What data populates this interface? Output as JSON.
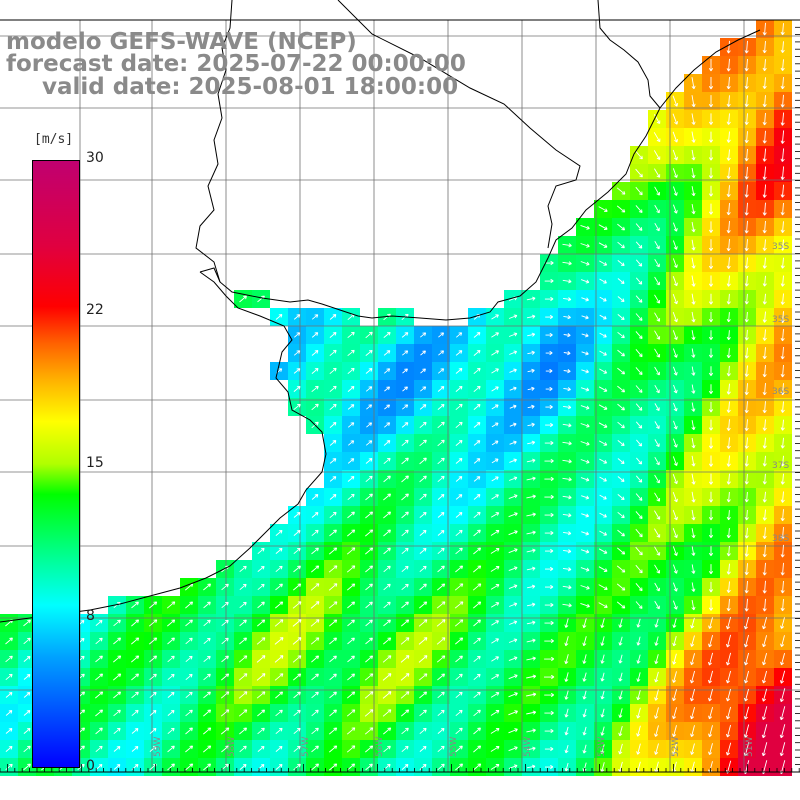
{
  "header": {
    "line1": "modelo GEFS-WAVE (NCEP)",
    "line2": "forecast date: 2025-07-22 00:00:00",
    "line3": "valid date: 2025-08-01 18:00:00"
  },
  "colorbar": {
    "unit": "[m/s]",
    "ticks": [
      "30",
      "22",
      "15",
      "8",
      "0"
    ],
    "range": [
      0,
      30
    ]
  },
  "map": {
    "lat_labels": [
      "35S",
      "35S",
      "36S",
      "37S",
      "38S"
    ],
    "lon_labels": [
      "59W",
      "58W",
      "57W",
      "56W",
      "55W",
      "54W",
      "53W",
      "52W",
      "51W"
    ],
    "colors": {
      "land": "#ffffff",
      "coast": "#000000",
      "grid": "#707070",
      "arrows": "#ffffff"
    }
  }
}
